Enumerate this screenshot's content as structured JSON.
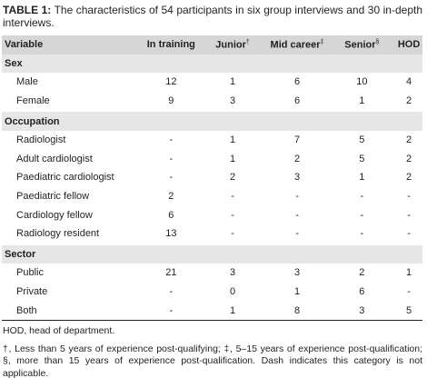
{
  "title": {
    "label": "TABLE 1:",
    "text": "The characteristics of 54 participants in six group interviews and 30 in-depth interviews."
  },
  "table": {
    "header": [
      {
        "text": "Variable"
      },
      {
        "text": "In training"
      },
      {
        "text": "Junior",
        "mark": "†"
      },
      {
        "text": "Mid career",
        "mark": "‡"
      },
      {
        "text": "Senior",
        "mark": "§"
      },
      {
        "text": "HOD"
      }
    ],
    "sections": [
      {
        "name": "Sex",
        "rows": [
          [
            "Male",
            12,
            1,
            6,
            10,
            4
          ],
          [
            "Female",
            9,
            3,
            6,
            1,
            2
          ]
        ]
      },
      {
        "name": "Occupation",
        "rows": [
          [
            "Radiologist",
            "-",
            1,
            7,
            5,
            2
          ],
          [
            "Adult cardiologist",
            "-",
            1,
            2,
            5,
            2
          ],
          [
            "Paediatric cardiologist",
            "-",
            2,
            3,
            1,
            2
          ],
          [
            "Paediatric fellow",
            2,
            "-",
            "-",
            "-",
            "-"
          ],
          [
            "Cardiology fellow",
            6,
            "-",
            "-",
            "-",
            "-"
          ],
          [
            "Radiology resident",
            13,
            "-",
            "-",
            "-",
            "-"
          ]
        ]
      },
      {
        "name": "Sector",
        "rows": [
          [
            "Public",
            21,
            3,
            3,
            2,
            1
          ],
          [
            "Private",
            "-",
            0,
            1,
            6,
            "-"
          ],
          [
            "Both",
            "-",
            1,
            8,
            3,
            5
          ]
        ]
      }
    ]
  },
  "footnotes": [
    "HOD, head of department.",
    "†, Less than 5 years of experience post-qualifying; ‡, 5–15 years of experience post-qualification; §, more than 15 years of experience post-qualification. Dash indicates this category is not applicable."
  ]
}
